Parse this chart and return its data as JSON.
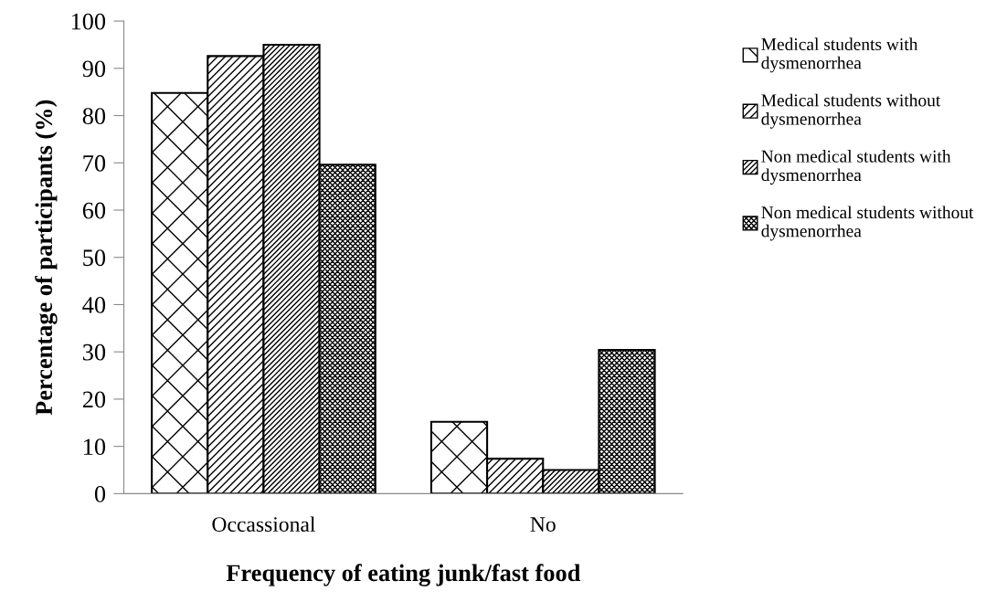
{
  "chart_data": {
    "type": "bar",
    "xlabel": "Frequency of eating junk/fast food",
    "ylabel": "Percentage of participants (%)",
    "categories": [
      "Occassional",
      "No"
    ],
    "series": [
      {
        "name": "Medical students with dysmenorrhea",
        "color": "#000000",
        "values": [
          84.8,
          15.2
        ]
      },
      {
        "name": "Medical students without dysmenorrhea",
        "color": "#000000",
        "values": [
          92.6,
          7.4
        ]
      },
      {
        "name": "Non medical students with dysmenorrhea",
        "color": "#000000",
        "values": [
          95,
          5
        ]
      },
      {
        "name": "Non medical students without dysmenorrhea",
        "color": "#000000",
        "values": [
          69.6,
          30.4
        ]
      }
    ],
    "ylim": [
      0,
      100
    ],
    "yticks": [
      0,
      10,
      20,
      30,
      40,
      50,
      60,
      70,
      80,
      90,
      100
    ],
    "grid": false,
    "legend": "right"
  }
}
